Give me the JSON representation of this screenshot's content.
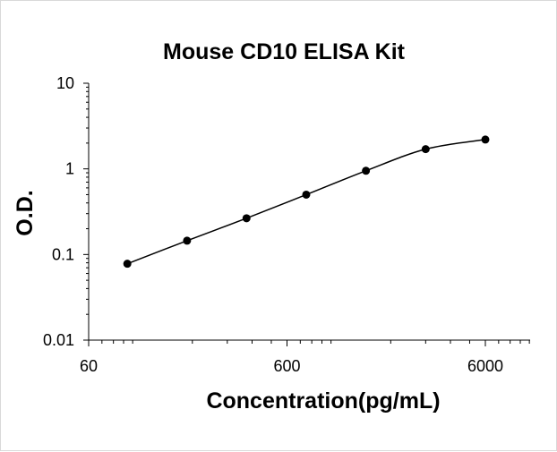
{
  "chart_data": {
    "type": "scatter",
    "title": "Mouse CD10 ELISA Kit",
    "xlabel": "Concentration(pg/mL)",
    "ylabel": "O.D.",
    "x_scale": "log",
    "y_scale": "log",
    "xlim": [
      60,
      6000
    ],
    "ylim": [
      0.01,
      10
    ],
    "x_tick_labels": [
      "60",
      "600",
      "6000"
    ],
    "x_tick_values": [
      60,
      600,
      6000
    ],
    "y_tick_labels": [
      "10",
      "1",
      "0.1",
      "0.01"
    ],
    "y_tick_values": [
      10,
      1,
      0.1,
      0.01
    ],
    "grid": false,
    "legend": "none",
    "series": [
      {
        "x": [
          94,
          188,
          375,
          750,
          1500,
          3000,
          6000
        ],
        "y": [
          0.078,
          0.145,
          0.265,
          0.5,
          0.95,
          1.7,
          2.2
        ]
      }
    ],
    "fit_curve": true,
    "marker_color": "#000000",
    "line_color": "#000000"
  }
}
